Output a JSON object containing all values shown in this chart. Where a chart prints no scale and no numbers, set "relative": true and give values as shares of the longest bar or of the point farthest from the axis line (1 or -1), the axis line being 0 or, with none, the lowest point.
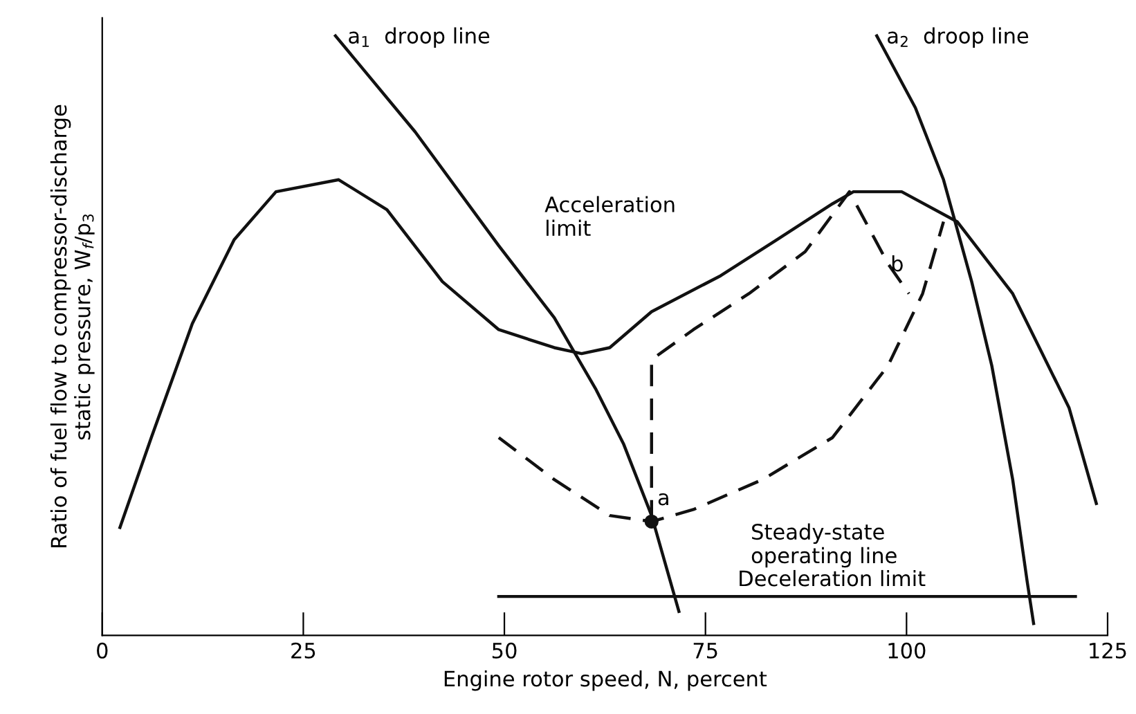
{
  "chart_data": {
    "type": "line",
    "relative": true,
    "xlabel": "Engine rotor speed, N, percent",
    "ylabel": "Ratio of fuel flow to compressor-discharge\nstatic pressure, W$_{f}$/p$_{3}$",
    "xlim": [
      0,
      125
    ],
    "xticks": [
      0,
      25,
      50,
      75,
      100,
      125
    ],
    "grid": false,
    "legend": false,
    "series": [
      {
        "color": "#111111",
        "line_style": "solid",
        "x": [
          2.2,
          6.1,
          11.2,
          16.4,
          21.6,
          29.4,
          35.4,
          42.3,
          49.3,
          56.2,
          59.6,
          63.1,
          68.3,
          76.9,
          83.9,
          90.8,
          93.4,
          99.4,
          106.3,
          113.2,
          120.2,
          123.6
        ],
        "values": [
          0.18,
          0.33,
          0.52,
          0.66,
          0.74,
          0.76,
          0.71,
          0.59,
          0.51,
          0.48,
          0.47,
          0.48,
          0.54,
          0.6,
          0.66,
          0.72,
          0.74,
          0.74,
          0.69,
          0.57,
          0.38,
          0.22
        ]
      },
      {
        "color": "#111111",
        "line_style": "solid",
        "x": [
          29.0,
          38.9,
          49.3,
          56.2,
          61.4,
          64.8,
          68.3,
          71.7
        ],
        "values": [
          1.0,
          0.84,
          0.65,
          0.53,
          0.41,
          0.32,
          0.2,
          0.04
        ]
      },
      {
        "color": "#111111",
        "line_style": "solid",
        "x": [
          96.3,
          101.1,
          104.6,
          108.1,
          110.6,
          113.2,
          115.0,
          115.8
        ],
        "values": [
          1.0,
          0.88,
          0.76,
          0.59,
          0.45,
          0.26,
          0.09,
          0.02
        ]
      },
      {
        "color": "#111111",
        "line_style": "dashed",
        "x": [
          49.3,
          56.2,
          63.1,
          68.3,
          73.5,
          82.1,
          90.8,
          97.7,
          102.0,
          104.6
        ],
        "values": [
          0.33,
          0.26,
          0.2,
          0.19,
          0.21,
          0.26,
          0.33,
          0.45,
          0.57,
          0.69
        ]
      },
      {
        "color": "#111111",
        "line_style": "solid",
        "x": [
          49.3,
          121.0
        ],
        "values": [
          0.065,
          0.065
        ]
      },
      {
        "color": "#111111",
        "line_style": "dashed",
        "x": [
          68.3,
          68.3,
          73.5,
          80.4,
          87.4,
          92.9,
          97.7,
          100.3
        ],
        "values": [
          0.19,
          0.46,
          0.51,
          0.57,
          0.64,
          0.74,
          0.62,
          0.57
        ]
      },
      {
        "type": "scatter",
        "marker": "circle",
        "color": "#111111",
        "x": [
          68.3
        ],
        "values": [
          0.19
        ]
      }
    ],
    "annotations": [
      {
        "text": "a$_{1}$  droop line",
        "x": 30.5,
        "y": 0.98
      },
      {
        "text": "a$_{2}$  droop line",
        "x": 97.5,
        "y": 0.98
      },
      "Acceleration\nlimit",
      "Steady-state\noperating line",
      {
        "text": "Deceleration limit",
        "x": 79,
        "y": 0.075
      },
      {
        "text": "a",
        "x": 69,
        "y": 0.21
      },
      {
        "text": "b",
        "x": 98,
        "y": 0.6
      }
    ]
  }
}
